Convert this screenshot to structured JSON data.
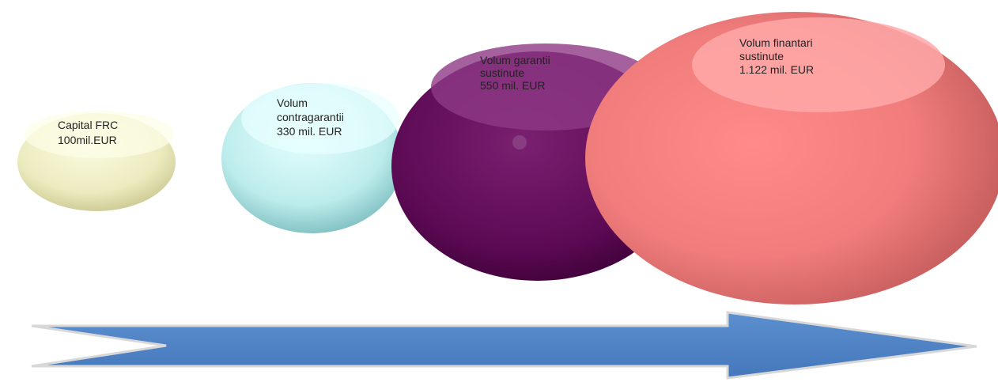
{
  "nodes": [
    {
      "lines": [
        "Capital FRC",
        "100mil.EUR"
      ]
    },
    {
      "lines": [
        "Volum",
        "contragarantii",
        "330 mil. EUR"
      ]
    },
    {
      "lines": [
        "Volum garantii",
        "sustinute",
        "550 mil. EUR"
      ]
    },
    {
      "lines": [
        "Volum finantari",
        "sustinute",
        "1.122 mil. EUR"
      ]
    }
  ]
}
